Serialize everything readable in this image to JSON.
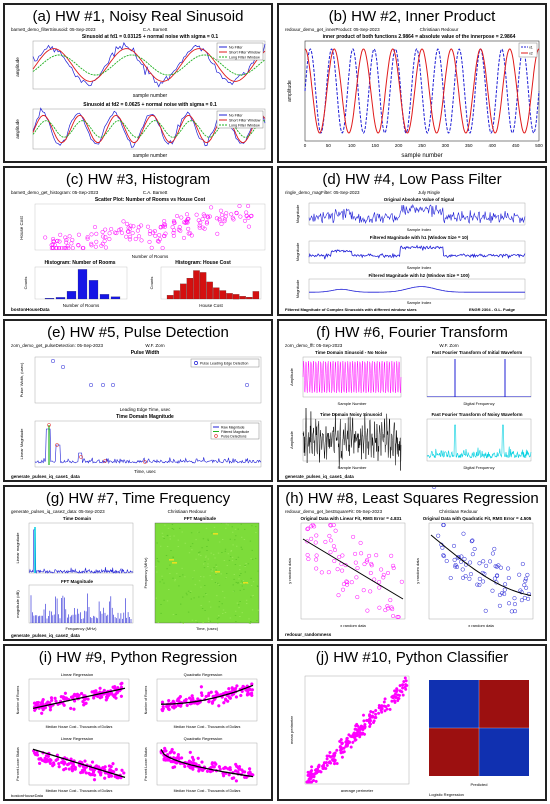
{
  "panels": [
    {
      "title": "(a) HW #1, Noisy Real Sinusoid",
      "fig_label": "barnett_demo_filterSinusoid: 05-Sep-2023",
      "author": "C.A. Barnett",
      "plots": [
        {
          "title": "Sinusoid at fd1 = 0.03125 + normal noise with sigma = 0.1",
          "xlabel": "sample number",
          "ylabel": "amplitude",
          "legend": [
            "No Filter",
            "Short Filter Window",
            "Long Filter Window"
          ]
        },
        {
          "title": "Sinusoid at fd2 = 0.0625 + normal noise with sigma = 0.1",
          "xlabel": "sample number",
          "ylabel": "amplitude",
          "legend": [
            "No Filter",
            "Short Filter Window",
            "Long Filter Window"
          ]
        }
      ]
    },
    {
      "title": "(b) HW #2, Inner Product",
      "fig_label": "redouur_demo_get_innerProduct: 05-Sep-2023",
      "author": "Christiaan Redouur",
      "plot_title": "inner product of both functions 2.9864 = absolute value of the innerpose = 2.9864",
      "xlabel": "sample number",
      "ylabel": "amplitude",
      "x_ticks": [
        "0",
        "50",
        "100",
        "150",
        "200",
        "250",
        "300",
        "350",
        "400",
        "450",
        "500"
      ],
      "legend": [
        "x1",
        "x2"
      ]
    },
    {
      "title": "(c) HW #3, Histogram",
      "fig_label": "barnett_demo_get_histogram: 05-Sep-2023",
      "author": "C.A. Barnett",
      "scatter_title": "Scatter Plot: Number of Rooms vs House Cost",
      "scatter_xlabel": "Number of Rooms",
      "scatter_ylabel": "House Cost",
      "hist1_title": "Histogram: Number of Rooms",
      "hist1_xlabel": "Number of Rooms",
      "hist1_ylabel": "Counts",
      "hist2_title": "Histogram: House Cost",
      "hist2_xlabel": "House Cost",
      "hist2_ylabel": "Counts",
      "footer": "bostonHouseData"
    },
    {
      "title": "(d) HW #4, Low Pass Filter",
      "fig_label": "ringle_demo_magFilter: 05-Sep-2023",
      "author": "July Ringle",
      "plots": [
        {
          "title": "Original Absolute Value of Signal",
          "xlabel": "Sample Index",
          "ylabel": "Magnitude"
        },
        {
          "title": "Filtered Magnitude with h1 (Window Size = 10)",
          "xlabel": "Sample Index",
          "ylabel": "Magnitude"
        },
        {
          "title": "Filtered Magnitude with h2 (Window Size = 100)",
          "xlabel": "Sample Index",
          "ylabel": "Magnitude"
        }
      ],
      "footer_left": "Filtered Magnitude of Complex Sinusoids with different window sizes",
      "footer_right": "ENGR 2304 - G.L. Fudge"
    },
    {
      "title": "(e) HW #5, Pulse Detection",
      "fig_label": "zorn_demo_get_pulseDetection: 05-Sep-2023",
      "author": "W.F. Zorn",
      "plot1_title": "Pulse Width",
      "plot1_xlabel": "Leading Edge Time, usec",
      "plot1_ylabel": "Pulse Width, (usec)",
      "plot1_legend": [
        "Pulse Leading Edge Detection"
      ],
      "plot2_title": "Time Domain Magnitude",
      "plot2_xlabel": "Time, usec",
      "plot2_ylabel": "Linear Magnitude",
      "plot2_legend": [
        "Raw Magnitude",
        "Filtered Magnitude",
        "Pulse Detections"
      ],
      "footer": "generate_pulses_iq_case1_data"
    },
    {
      "title": "(f) HW #6, Fourier Transform",
      "fig_label": "zorn_demo_fft: 05-Sep-2023",
      "author": "W.F. Zorn",
      "plots": [
        {
          "title": "Time Domain Sinusoid - No Noise",
          "xlabel": "Sample Number",
          "ylabel": "Amplitude"
        },
        {
          "title": "Fast Fourier Transform of Initial Waveform",
          "xlabel": "Digital Frequency",
          "ylabel": ""
        },
        {
          "title": "Time Domain Noisy Sinusoid",
          "xlabel": "Sample Number",
          "ylabel": "Amplitude"
        },
        {
          "title": "Fast Fourier Transform of Noisy Waveform",
          "xlabel": "Digital Frequency",
          "ylabel": ""
        }
      ],
      "footer": "generate_pulses_iq_case1_data"
    },
    {
      "title": "(g) HW #7, Time Frequency",
      "fig_label": "generate_pulses_iq_case2_data: 05-Sep-2023",
      "author": "Christiaan Redouur",
      "plot1_title": "Time Domain",
      "plot1_ylabel": "Linear magnitude",
      "plot2_title": "FFT Magnitude",
      "plot2_xlabel": "Frequency (MHz)",
      "plot2_ylabel": "magnitude (dB)",
      "plot3_title": "FFT Magnitude",
      "plot3_xlabel": "Time, (usec)",
      "plot3_ylabel": "Frequency (MHz)",
      "footer": "generate_pulses_iq_case2_data"
    },
    {
      "title": "(h) HW #8, Least Squares Regression",
      "fig_label": "redouur_demo_get_bestSquareFit: 05-Sep-2023",
      "author": "Christiaan Redouur",
      "plot1_title": "Original Data with Linear Fit, RMS Error = 4.831",
      "plot2_title": "Original Data with Quadratic Fit, RMS Error = 4.505",
      "xlabel": "x random data",
      "ylabel": "y random data",
      "footer": "redouur_randomness"
    },
    {
      "title": "(i) HW #9, Python Regression",
      "plots": [
        {
          "title": "Linear Regression",
          "xlabel": "Median House Cost - Thousands of Dollars",
          "ylabel": "Number of Rooms"
        },
        {
          "title": "Quadratic Regression",
          "xlabel": "Median House Cost - Thousands of Dollars",
          "ylabel": "Number of Rooms"
        },
        {
          "title": "Linear Regression",
          "xlabel": "Median House Cost - Thousands of Dollars",
          "ylabel": "Percent Lower Status"
        },
        {
          "title": "Quadratic Regression",
          "xlabel": "Median House Cost - Thousands of Dollars",
          "ylabel": "Percent Lower Status"
        }
      ],
      "footer": "bostonHouseData"
    },
    {
      "title": "(j) HW #10, Python Classifier",
      "scatter_xlabel": "average perimeter",
      "scatter_ylabel": "mean perimeter",
      "cm_xlabel": "Predicted",
      "footer": "Logistic Regression"
    }
  ],
  "colors": {
    "frame": "#222222",
    "blue": "#1f1fd6",
    "red": "#e01b1b",
    "green": "#1fb01f",
    "magenta": "#ff00ff",
    "dark_blue": "#1030b0",
    "dark_red": "#9c1010",
    "cyan": "#00d0e0",
    "spectrum_green": "#7ddc3a"
  }
}
